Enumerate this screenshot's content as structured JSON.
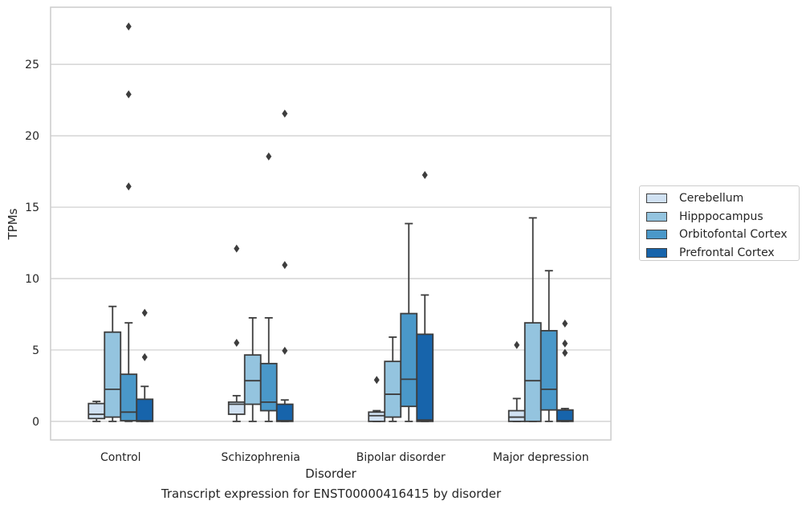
{
  "caption": "Transcript expression for ENST00000416415 by disorder",
  "chart_data": {
    "type": "box",
    "xlabel": "Disorder",
    "ylabel": "TPMs",
    "categories": [
      "Control",
      "Schizophrenia",
      "Bipolar disorder",
      "Major depression"
    ],
    "ylim": [
      -1.3,
      29
    ],
    "yticks": [
      0,
      5,
      10,
      15,
      20,
      25
    ],
    "grid": "horizontal",
    "legend_position": "right",
    "series": [
      {
        "name": "Cerebellum",
        "color": "#d0e1f2",
        "boxes": [
          {
            "whislo": 0.0,
            "q1": 0.2,
            "med": 0.5,
            "q3": 1.25,
            "whishi": 1.4,
            "fliers": []
          },
          {
            "whislo": 0.0,
            "q1": 0.5,
            "med": 1.2,
            "q3": 1.35,
            "whishi": 1.8,
            "fliers": [
              5.5,
              12.1
            ]
          },
          {
            "whislo": 0.0,
            "q1": 0.0,
            "med": 0.4,
            "q3": 0.65,
            "whishi": 0.75,
            "fliers": [
              2.9
            ]
          },
          {
            "whislo": 0.0,
            "q1": 0.0,
            "med": 0.3,
            "q3": 0.75,
            "whishi": 1.6,
            "fliers": [
              5.35
            ]
          }
        ]
      },
      {
        "name": "Hipppocampus",
        "color": "#94c4df",
        "boxes": [
          {
            "whislo": 0.0,
            "q1": 0.3,
            "med": 2.25,
            "q3": 6.25,
            "whishi": 8.05,
            "fliers": []
          },
          {
            "whislo": 0.0,
            "q1": 1.2,
            "med": 2.85,
            "q3": 4.65,
            "whishi": 7.25,
            "fliers": []
          },
          {
            "whislo": 0.0,
            "q1": 0.3,
            "med": 1.9,
            "q3": 4.2,
            "whishi": 5.9,
            "fliers": []
          },
          {
            "whislo": 0.0,
            "q1": 0.0,
            "med": 2.85,
            "q3": 6.9,
            "whishi": 14.25,
            "fliers": []
          }
        ]
      },
      {
        "name": "Orbitofontal Cortex",
        "color": "#4a98c9",
        "boxes": [
          {
            "whislo": 0.0,
            "q1": 0.05,
            "med": 0.65,
            "q3": 3.3,
            "whishi": 6.9,
            "fliers": [
              16.45,
              22.9,
              27.65
            ]
          },
          {
            "whislo": 0.0,
            "q1": 0.75,
            "med": 1.35,
            "q3": 4.05,
            "whishi": 7.25,
            "fliers": [
              18.55
            ]
          },
          {
            "whislo": 0.0,
            "q1": 1.05,
            "med": 2.95,
            "q3": 7.55,
            "whishi": 13.85,
            "fliers": []
          },
          {
            "whislo": 0.0,
            "q1": 0.8,
            "med": 2.25,
            "q3": 6.35,
            "whishi": 10.55,
            "fliers": []
          }
        ]
      },
      {
        "name": "Prefrontal Cortex",
        "color": "#1764ab",
        "boxes": [
          {
            "whislo": 0.0,
            "q1": 0.0,
            "med": 0.05,
            "q3": 1.55,
            "whishi": 2.45,
            "fliers": [
              4.5,
              7.6
            ]
          },
          {
            "whislo": 0.0,
            "q1": 0.0,
            "med": 0.05,
            "q3": 1.2,
            "whishi": 1.5,
            "fliers": [
              4.95,
              10.95,
              21.55
            ]
          },
          {
            "whislo": 0.0,
            "q1": 0.0,
            "med": 0.1,
            "q3": 6.1,
            "whishi": 8.85,
            "fliers": [
              17.25
            ]
          },
          {
            "whislo": 0.0,
            "q1": 0.0,
            "med": 0.05,
            "q3": 0.8,
            "whishi": 0.9,
            "fliers": [
              4.8,
              5.45,
              6.85
            ]
          }
        ]
      }
    ]
  }
}
